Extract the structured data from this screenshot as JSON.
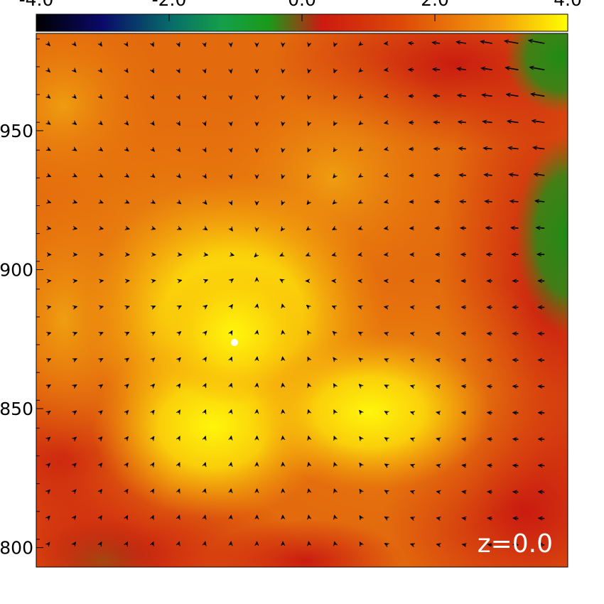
{
  "chart_data": {
    "type": "vector_field",
    "colorbar": {
      "tick_labels": [
        "-4.0",
        "-2.0",
        "0.0",
        "2.0",
        "4.0"
      ],
      "range": [
        -4.0,
        4.0
      ],
      "colormap_stops": [
        {
          "v": -4.0,
          "color": "#000000"
        },
        {
          "v": -3.0,
          "color": "#0a0a6a"
        },
        {
          "v": -2.0,
          "color": "#076a6a"
        },
        {
          "v": -1.2,
          "color": "#14a04a"
        },
        {
          "v": -0.5,
          "color": "#1a9a1a"
        },
        {
          "v": 0.3,
          "color": "#cc1a10"
        },
        {
          "v": 1.5,
          "color": "#dd4a08"
        },
        {
          "v": 3.0,
          "color": "#f5a00c"
        },
        {
          "v": 4.0,
          "color": "#ffff00"
        }
      ]
    },
    "y_tick_labels": [
      "950",
      "900",
      "850",
      "800"
    ],
    "y_tick_values": [
      950,
      900,
      850,
      800
    ],
    "y_range": [
      793,
      985
    ],
    "annotation": "z=0.0",
    "field": {
      "colors": {
        "yellow": "#fcee06",
        "light_yellow": "#f7d80b",
        "orange": "#ee920f",
        "dark_orange": "#e36b0d",
        "red": "#cc1a10",
        "dark_red": "#a8340e",
        "green": "#2a8c18"
      },
      "sinks": [
        {
          "x": 0.4,
          "y": 0.42,
          "strength": 1.0
        },
        {
          "x": 0.5,
          "y": 0.5,
          "strength": 0.35
        }
      ],
      "grid_cols": 20,
      "grid_rows": 20
    }
  }
}
